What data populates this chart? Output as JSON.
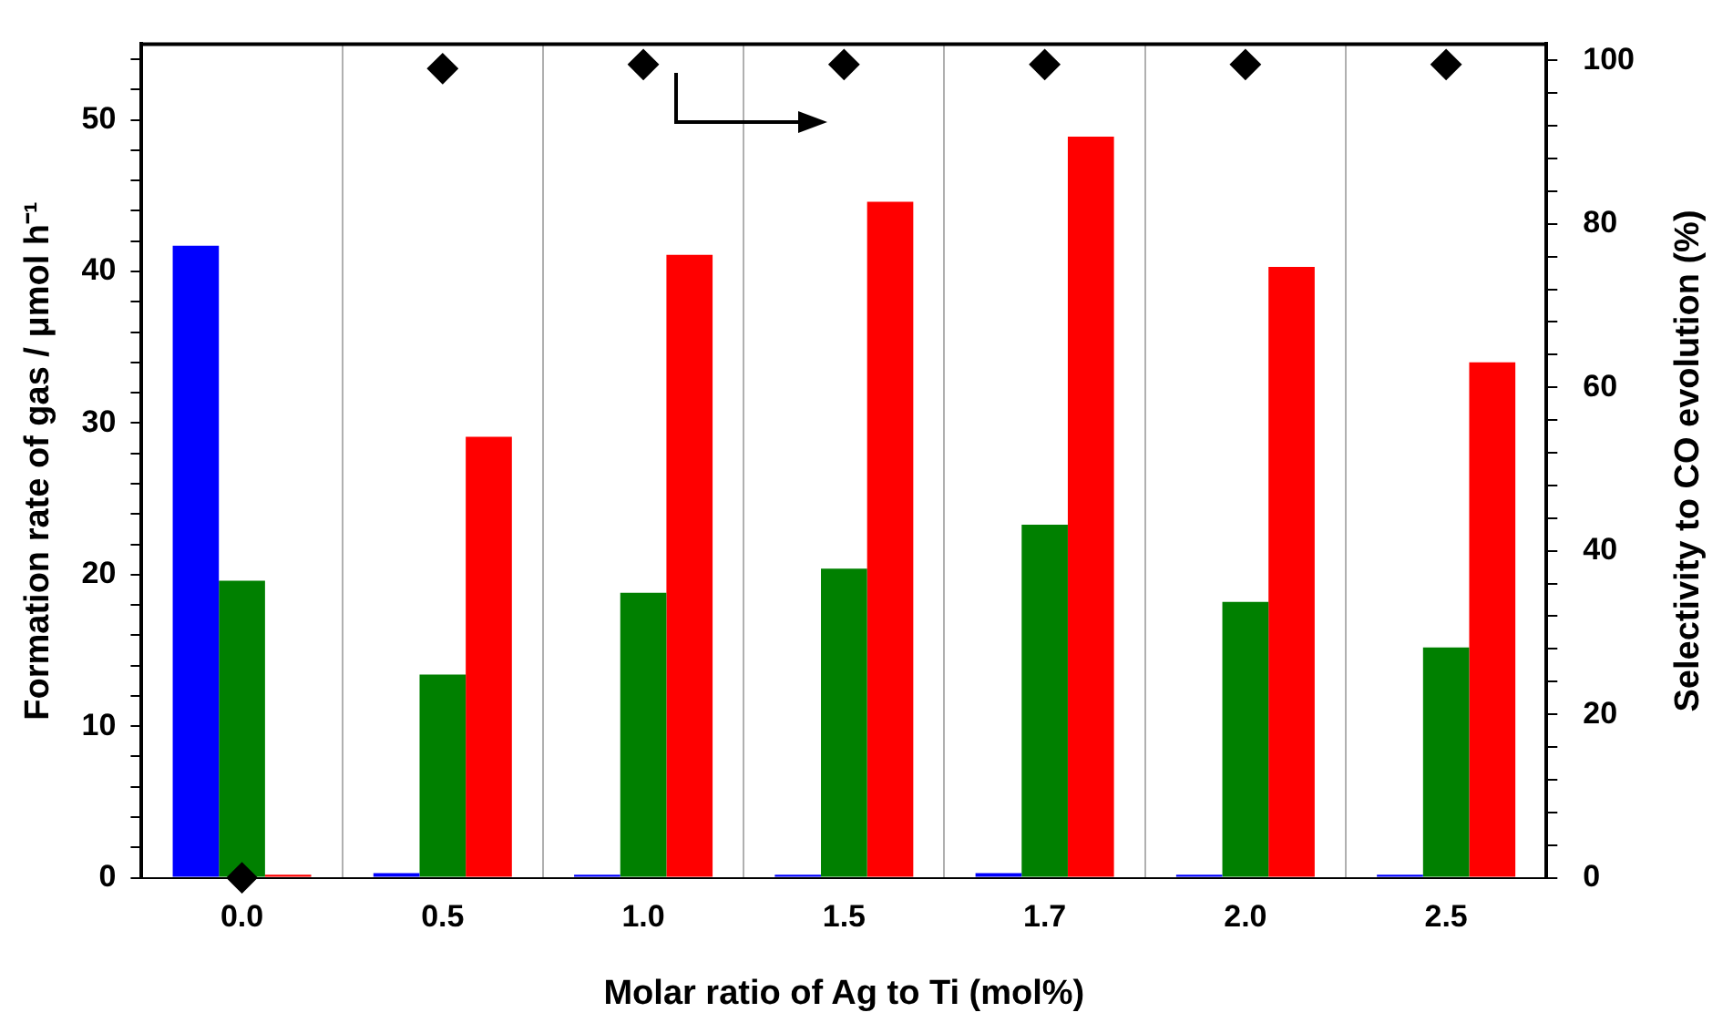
{
  "chart_data": {
    "type": "bar",
    "xlabel": "Molar ratio of Ag to Ti (mol%)",
    "ylabel": "Formation rate of gas / μmol h⁻¹",
    "y2label": "Selectivity to CO evolution (%)",
    "categories": [
      "0.0",
      "0.5",
      "1.0",
      "1.5",
      "1.7",
      "2.0",
      "2.5"
    ],
    "series": [
      {
        "color": "#0000ff",
        "values": [
          41.7,
          0.3,
          0.2,
          0.2,
          0.3,
          0.2,
          0.2
        ]
      },
      {
        "color": "#008000",
        "values": [
          19.6,
          13.4,
          18.8,
          20.4,
          23.3,
          18.2,
          15.2
        ]
      },
      {
        "color": "#ff0000",
        "values": [
          0.2,
          29.1,
          41.1,
          44.6,
          48.9,
          40.3,
          34.0
        ]
      },
      {
        "type": "scatter",
        "axis": "y2",
        "color": "#000000",
        "marker": "diamond",
        "x": [
          "0.0",
          "0.5",
          "1.0",
          "1.5",
          "1.7",
          "2.0",
          "2.5"
        ],
        "values": [
          0,
          99,
          99.5,
          99.5,
          99.5,
          99.5,
          99.5
        ]
      }
    ],
    "ylim": [
      0,
      55
    ],
    "yticks": [
      0,
      {
        "value": 2,
        "label": null
      },
      {
        "value": 4,
        "label": null
      },
      {
        "value": 6,
        "label": null
      },
      {
        "value": 8,
        "label": null
      },
      10,
      {
        "value": 12,
        "label": null
      },
      {
        "value": 14,
        "label": null
      },
      {
        "value": 16,
        "label": null
      },
      {
        "value": 18,
        "label": null
      },
      20,
      {
        "value": 22,
        "label": null
      },
      {
        "value": 24,
        "label": null
      },
      {
        "value": 26,
        "label": null
      },
      {
        "value": 28,
        "label": null
      },
      30,
      {
        "value": 32,
        "label": null
      },
      {
        "value": 34,
        "label": null
      },
      {
        "value": 36,
        "label": null
      },
      {
        "value": 38,
        "label": null
      },
      40,
      {
        "value": 42,
        "label": null
      },
      {
        "value": 44,
        "label": null
      },
      {
        "value": 46,
        "label": null
      },
      {
        "value": 48,
        "label": null
      },
      50,
      {
        "value": 52,
        "label": null
      },
      {
        "value": 54,
        "label": null
      }
    ],
    "y2lim": [
      0,
      102
    ],
    "y2ticks": [
      0,
      {
        "value": 4,
        "label": null
      },
      {
        "value": 8,
        "label": null
      },
      {
        "value": 12,
        "label": null
      },
      {
        "value": 16,
        "label": null
      },
      20,
      {
        "value": 24,
        "label": null
      },
      {
        "value": 28,
        "label": null
      },
      {
        "value": 32,
        "label": null
      },
      {
        "value": 36,
        "label": null
      },
      40,
      {
        "value": 44,
        "label": null
      },
      {
        "value": 48,
        "label": null
      },
      {
        "value": 52,
        "label": null
      },
      {
        "value": 56,
        "label": null
      },
      60,
      {
        "value": 64,
        "label": null
      },
      {
        "value": 68,
        "label": null
      },
      {
        "value": 72,
        "label": null
      },
      {
        "value": 76,
        "label": null
      },
      80,
      {
        "value": 84,
        "label": null
      },
      {
        "value": 88,
        "label": null
      },
      {
        "value": 92,
        "label": null
      },
      {
        "value": 96,
        "label": null
      },
      100
    ],
    "grid": "x"
  }
}
